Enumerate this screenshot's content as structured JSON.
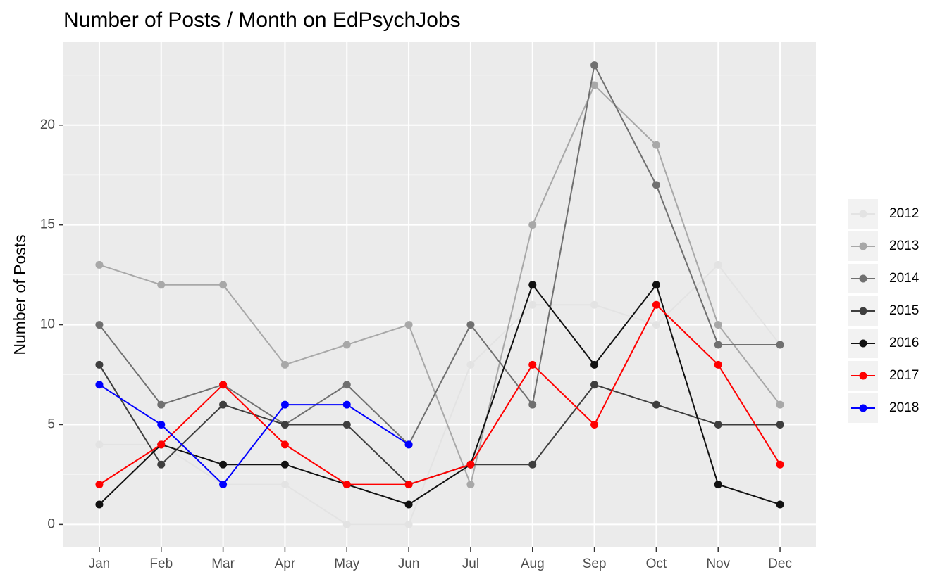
{
  "chart_data": {
    "type": "line",
    "title": "Number of Posts / Month on EdPsychJobs",
    "y_label": "Number of Posts",
    "categories": [
      "Jan",
      "Feb",
      "Mar",
      "Apr",
      "May",
      "Jun",
      "Jul",
      "Aug",
      "Sep",
      "Oct",
      "Nov",
      "Dec"
    ],
    "series": [
      {
        "name": "2012",
        "color": "#e3e3e3",
        "values": [
          4,
          4,
          2,
          2,
          0,
          0,
          8,
          11,
          11,
          10,
          13,
          9
        ]
      },
      {
        "name": "2013",
        "color": "#a8a8a8",
        "values": [
          13,
          12,
          12,
          8,
          9,
          10,
          2,
          15,
          22,
          19,
          10,
          6
        ]
      },
      {
        "name": "2014",
        "color": "#707070",
        "values": [
          10,
          6,
          7,
          5,
          7,
          4,
          10,
          6,
          23,
          17,
          9,
          9
        ]
      },
      {
        "name": "2015",
        "color": "#3e3e3e",
        "values": [
          8,
          3,
          6,
          5,
          5,
          2,
          3,
          3,
          7,
          6,
          5,
          5
        ]
      },
      {
        "name": "2016",
        "color": "#111111",
        "values": [
          1,
          4,
          3,
          3,
          2,
          1,
          3,
          12,
          8,
          12,
          2,
          1
        ]
      },
      {
        "name": "2017",
        "color": "#ff0000",
        "values": [
          2,
          4,
          7,
          4,
          2,
          2,
          3,
          8,
          5,
          11,
          8,
          3
        ]
      },
      {
        "name": "2018",
        "color": "#0000ff",
        "values": [
          7,
          5,
          2,
          6,
          6,
          4,
          null,
          null,
          null,
          null,
          null,
          null
        ]
      }
    ],
    "ylim": [
      -1.15,
      24.15
    ],
    "yticks": [
      0,
      5,
      10,
      15,
      20
    ],
    "grid": true,
    "legend": "right"
  }
}
